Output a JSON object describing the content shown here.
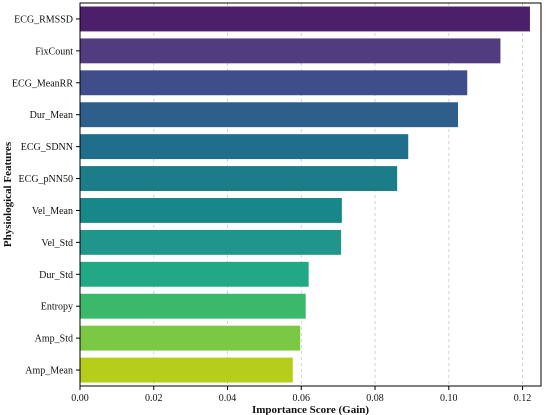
{
  "chart_data": {
    "type": "bar",
    "orientation": "horizontal",
    "title": "",
    "xlabel": "Importance Score (Gain)",
    "ylabel": "Physiological Features",
    "xlim": [
      0,
      0.125
    ],
    "xticks": [
      0.0,
      0.02,
      0.04,
      0.06,
      0.08,
      0.1,
      0.12
    ],
    "xtick_labels": [
      "0.00",
      "0.02",
      "0.04",
      "0.06",
      "0.08",
      "0.10",
      "0.12"
    ],
    "grid": "x-axis dashed",
    "categories": [
      "ECG_RMSSD",
      "FixCount",
      "ECG_MeanRR",
      "Dur_Mean",
      "ECG_SDNN",
      "ECG_pNN50",
      "Vel_Mean",
      "Vel_Std",
      "Dur_Std",
      "Entropy",
      "Amp_Std",
      "Amp_Mean"
    ],
    "values": [
      0.122,
      0.114,
      0.105,
      0.1025,
      0.089,
      0.086,
      0.071,
      0.0708,
      0.062,
      0.0612,
      0.0597,
      0.0577
    ],
    "colors": [
      "#4b1f69",
      "#523c80",
      "#3f4e8a",
      "#2e5f8a",
      "#1f6e8c",
      "#1a7d88",
      "#17878a",
      "#1f958b",
      "#22a884",
      "#3bb86a",
      "#7ac843",
      "#b6ce1a"
    ]
  }
}
